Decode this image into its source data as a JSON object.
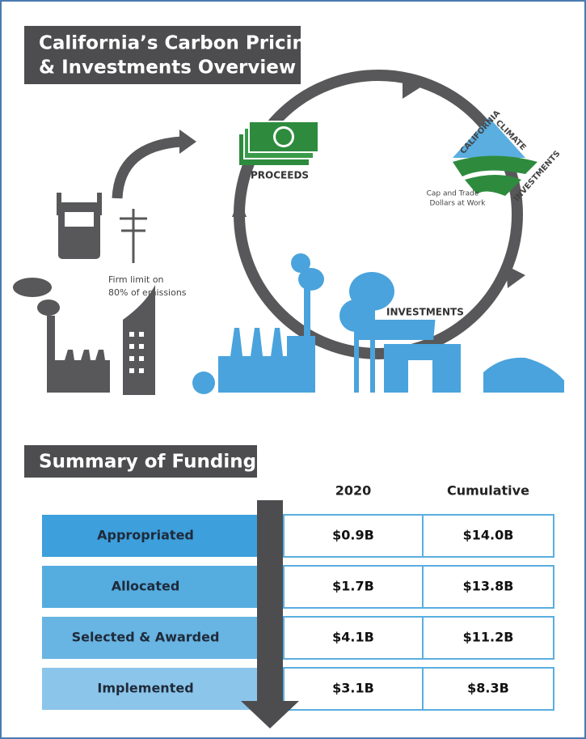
{
  "header": {
    "title_lines": [
      "California’s Carbon Pricing",
      "& Investments Overview"
    ]
  },
  "illustration": {
    "proceeds": "PROCEEDS",
    "investments": "INVESTMENTS",
    "firm_limit_lines": [
      "Firm limit on",
      "80% of emissions"
    ],
    "logo": {
      "word1": "CALIFORNIA",
      "word2": "CLIMATE",
      "word3": "INVESTMENTS",
      "tagline_lines": [
        "Cap and Trade",
        "Dollars at Work"
      ]
    }
  },
  "summary": {
    "title": "Summary of Funding",
    "columns": [
      "2020",
      "Cumulative"
    ],
    "rows": [
      [
        "Appropriated",
        "$0.9B",
        "$14.0B"
      ],
      [
        "Allocated",
        "$1.7B",
        "$13.8B"
      ],
      [
        "Selected & Awarded",
        "$4.1B",
        "$11.2B"
      ],
      [
        "Implemented",
        "$3.1B",
        "$8.3B"
      ]
    ]
  }
}
